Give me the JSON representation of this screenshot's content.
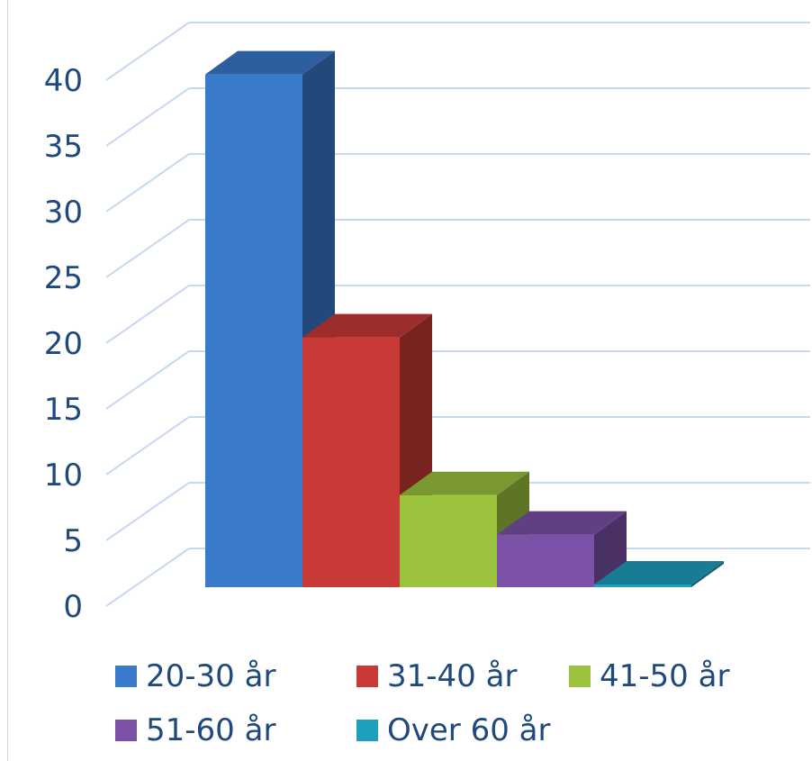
{
  "chart_data": {
    "type": "bar",
    "style": "3d-column",
    "categories": [
      "20-30 år",
      "31-40 år",
      "41-50 år",
      "51-60 år",
      "Over 60 år"
    ],
    "values": [
      39,
      19,
      7,
      4,
      0
    ],
    "colors": [
      "#3a7acb",
      "#c93a37",
      "#9bc33e",
      "#7b52a8",
      "#1f9fbe"
    ],
    "ylim": [
      0,
      40
    ],
    "yticks": [
      "0",
      "5",
      "10",
      "15",
      "20",
      "25",
      "30",
      "35",
      "40"
    ],
    "grid": true,
    "legend_position": "bottom",
    "title": "",
    "xlabel": "",
    "ylabel": ""
  }
}
